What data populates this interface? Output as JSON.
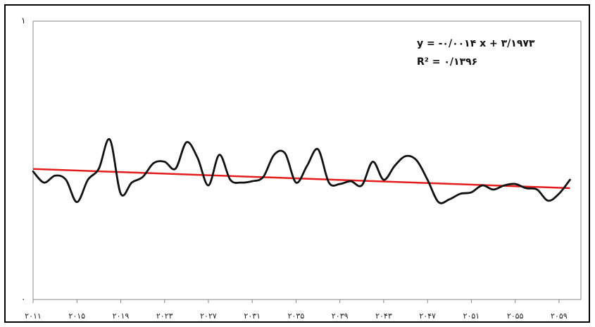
{
  "chart_data": {
    "type": "line",
    "title": "",
    "xlabel": "",
    "ylabel": "",
    "ylim": [
      0,
      1
    ],
    "ytick_labels": [
      "۰",
      "۱"
    ],
    "xtick_labels": [
      "۲۰۱۱",
      "۲۰۱۵",
      "۲۰۱۹",
      "۲۰۲۳",
      "۲۰۲۷",
      "۲۰۳۱",
      "۲۰۳۵",
      "۲۰۳۹",
      "۲۰۴۳",
      "۲۰۴۷",
      "۲۰۵۱",
      "۲۰۵۵",
      "۲۰۵۹"
    ],
    "xtick_values": [
      2011,
      2015,
      2019,
      2023,
      2027,
      2031,
      2035,
      2039,
      2043,
      2047,
      2051,
      2055,
      2059
    ],
    "xlim": [
      2011,
      2061
    ],
    "grid": false,
    "equation": "y = -۰/۰۰۱۴ x + ۳/۱۹۷۳",
    "r_squared": "R² = ۰/۱۳۹۶",
    "series": [
      {
        "color": "#111111",
        "values": [
          [
            2011.0,
            0.46
          ],
          [
            2012.0,
            0.42
          ],
          [
            2013.0,
            0.445
          ],
          [
            2014.0,
            0.43
          ],
          [
            2015.0,
            0.35
          ],
          [
            2016.0,
            0.43
          ],
          [
            2017.0,
            0.47
          ],
          [
            2018.0,
            0.575
          ],
          [
            2019.0,
            0.38
          ],
          [
            2020.0,
            0.42
          ],
          [
            2021.0,
            0.44
          ],
          [
            2022.0,
            0.49
          ],
          [
            2023.0,
            0.495
          ],
          [
            2024.0,
            0.47
          ],
          [
            2025.0,
            0.565
          ],
          [
            2026.0,
            0.51
          ],
          [
            2027.0,
            0.41
          ],
          [
            2028.0,
            0.52
          ],
          [
            2029.0,
            0.43
          ],
          [
            2030.0,
            0.42
          ],
          [
            2031.0,
            0.425
          ],
          [
            2032.0,
            0.44
          ],
          [
            2033.0,
            0.52
          ],
          [
            2034.0,
            0.525
          ],
          [
            2035.0,
            0.42
          ],
          [
            2036.0,
            0.48
          ],
          [
            2037.0,
            0.54
          ],
          [
            2038.0,
            0.42
          ],
          [
            2039.0,
            0.415
          ],
          [
            2040.0,
            0.425
          ],
          [
            2041.0,
            0.41
          ],
          [
            2042.0,
            0.495
          ],
          [
            2043.0,
            0.43
          ],
          [
            2044.0,
            0.48
          ],
          [
            2045.0,
            0.515
          ],
          [
            2046.0,
            0.5
          ],
          [
            2047.0,
            0.43
          ],
          [
            2048.0,
            0.35
          ],
          [
            2049.0,
            0.36
          ],
          [
            2050.0,
            0.38
          ],
          [
            2051.0,
            0.385
          ],
          [
            2052.0,
            0.41
          ],
          [
            2053.0,
            0.395
          ],
          [
            2054.0,
            0.41
          ],
          [
            2055.0,
            0.415
          ],
          [
            2056.0,
            0.4
          ],
          [
            2057.0,
            0.395
          ],
          [
            2058.0,
            0.355
          ],
          [
            2059.0,
            0.38
          ],
          [
            2060.0,
            0.43
          ]
        ]
      },
      {
        "color": "#e41e1e",
        "values": [
          [
            2011.0,
            0.469
          ],
          [
            2060.0,
            0.4
          ]
        ]
      }
    ]
  }
}
